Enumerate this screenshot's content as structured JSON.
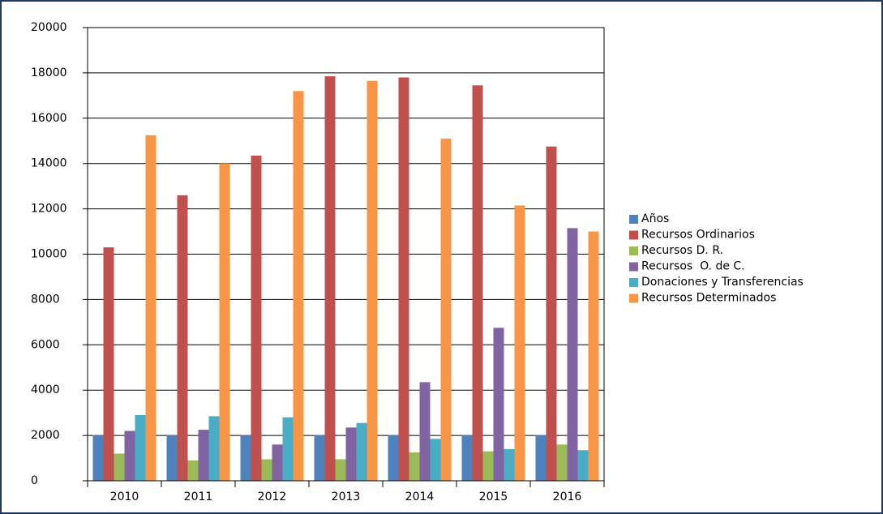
{
  "chart_data": {
    "type": "bar",
    "categories": [
      "2010",
      "2011",
      "2012",
      "2013",
      "2014",
      "2015",
      "2016"
    ],
    "series": [
      {
        "name": "Años",
        "color": "#4f81bd",
        "values": [
          2010,
          2011,
          2012,
          2013,
          2014,
          2015,
          2016
        ]
      },
      {
        "name": "Recursos Ordinarios",
        "color": "#c0504d",
        "values": [
          10300,
          12600,
          14350,
          17850,
          17800,
          17450,
          14750
        ]
      },
      {
        "name": "Recursos D. R.",
        "color": "#9bbb59",
        "values": [
          1200,
          900,
          950,
          950,
          1250,
          1300,
          1600
        ]
      },
      {
        "name": "Recursos  O. de C.",
        "color": "#8064a2",
        "values": [
          2200,
          2250,
          1600,
          2350,
          4350,
          6750,
          11150
        ]
      },
      {
        "name": "Donaciones y Transferencias",
        "color": "#4bacc6",
        "values": [
          2900,
          2850,
          2800,
          2550,
          1850,
          1400,
          1350
        ]
      },
      {
        "name": "Recursos Determinados",
        "color": "#f79646",
        "values": [
          15250,
          14000,
          17200,
          17650,
          15100,
          12150,
          11000
        ]
      }
    ],
    "ylim": [
      0,
      20000
    ],
    "yticks": [
      0,
      2000,
      4000,
      6000,
      8000,
      10000,
      12000,
      14000,
      16000,
      18000,
      20000
    ],
    "grid": true,
    "legend": "right"
  }
}
